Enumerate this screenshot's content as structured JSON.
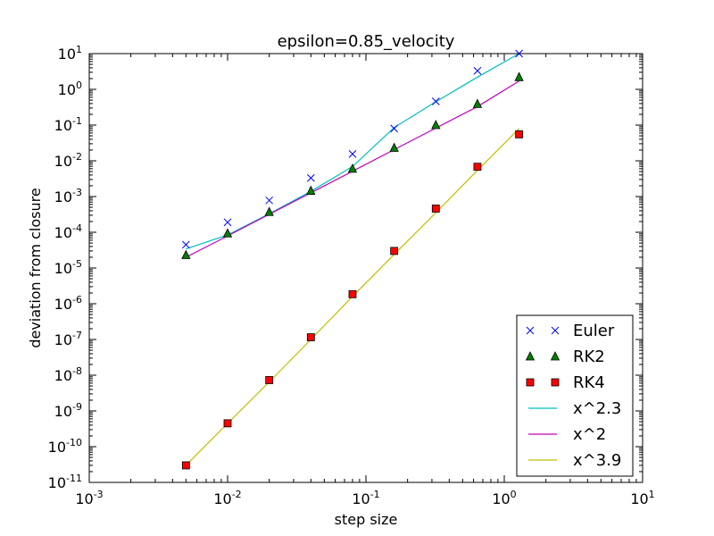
{
  "chart_data": {
    "type": "scatter",
    "title": "epsilon=0.85_velocity",
    "xlabel": "step size",
    "ylabel": "deviation from closure",
    "xscale": "log",
    "yscale": "log",
    "xlim": [
      0.001,
      10
    ],
    "ylim": [
      1e-11,
      10
    ],
    "grid": false,
    "legend_position": "lower-right",
    "x_ticks": [
      {
        "base": "10",
        "exp": "-3",
        "value": 0.001
      },
      {
        "base": "10",
        "exp": "-2",
        "value": 0.01
      },
      {
        "base": "10",
        "exp": "-1",
        "value": 0.1
      },
      {
        "base": "10",
        "exp": "0",
        "value": 1
      },
      {
        "base": "10",
        "exp": "1",
        "value": 10
      }
    ],
    "y_ticks": [
      {
        "base": "10",
        "exp": "-11",
        "value": 1e-11
      },
      {
        "base": "10",
        "exp": "-10",
        "value": 1e-10
      },
      {
        "base": "10",
        "exp": "-9",
        "value": 1e-09
      },
      {
        "base": "10",
        "exp": "-8",
        "value": 1e-08
      },
      {
        "base": "10",
        "exp": "-7",
        "value": 1e-07
      },
      {
        "base": "10",
        "exp": "-6",
        "value": 1e-06
      },
      {
        "base": "10",
        "exp": "-5",
        "value": 1e-05
      },
      {
        "base": "10",
        "exp": "-4",
        "value": 0.0001
      },
      {
        "base": "10",
        "exp": "-3",
        "value": 0.001
      },
      {
        "base": "10",
        "exp": "-2",
        "value": 0.01
      },
      {
        "base": "10",
        "exp": "-1",
        "value": 0.1
      },
      {
        "base": "10",
        "exp": "0",
        "value": 1
      },
      {
        "base": "10",
        "exp": "1",
        "value": 10
      }
    ],
    "x": [
      0.005,
      0.01,
      0.02,
      0.04,
      0.08,
      0.16,
      0.32,
      0.64,
      1.28
    ],
    "series": [
      {
        "name": "Euler",
        "kind": "marker",
        "marker": "x",
        "color": "#0000ff",
        "values": [
          4.5e-05,
          0.00019,
          0.00078,
          0.0033,
          0.0155,
          0.08,
          0.46,
          3.3,
          10
        ]
      },
      {
        "name": "RK2",
        "kind": "marker",
        "marker": "triangle",
        "color": "#008000",
        "values": [
          2.3e-05,
          9.3e-05,
          0.00037,
          0.00145,
          0.006,
          0.023,
          0.1,
          0.39,
          2.2
        ]
      },
      {
        "name": "RK4",
        "kind": "marker",
        "marker": "square",
        "color": "#ff0000",
        "values": [
          3e-11,
          4.5e-10,
          7.3e-09,
          1.15e-07,
          1.85e-06,
          3e-05,
          0.00046,
          0.0068,
          0.055
        ]
      },
      {
        "name": "x^2.3",
        "kind": "line",
        "color": "#00bfbf",
        "values": [
          3.4e-05,
          8.4e-05,
          0.00033,
          0.0014,
          0.0069,
          0.085,
          0.45,
          2.2,
          10
        ]
      },
      {
        "name": "x^2",
        "kind": "line",
        "color": "#bf00bf",
        "values": [
          2e-05,
          7.9e-05,
          0.00032,
          0.00127,
          0.0051,
          0.0205,
          0.082,
          0.33,
          1.7
        ]
      },
      {
        "name": "x^3.9",
        "kind": "line",
        "color": "#bfbf00",
        "values": [
          3e-11,
          4.5e-10,
          6.5e-09,
          1e-07,
          1.6e-06,
          2.4e-05,
          0.00035,
          0.0054,
          0.08
        ]
      }
    ]
  }
}
